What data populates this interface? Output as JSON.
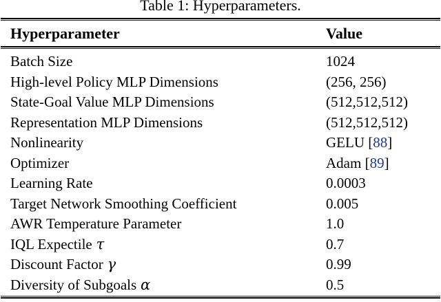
{
  "caption": "Table 1: Hyperparameters.",
  "colors": {
    "text": "#000000",
    "background": "#ffffff",
    "citation": "#1b3a8f"
  },
  "table": {
    "headers": [
      "Hyperparameter",
      "Value"
    ],
    "cite_open": "[",
    "cite_close": "]",
    "rows": [
      {
        "param": "Batch Size",
        "value": "1024"
      },
      {
        "param": "High-level Policy MLP Dimensions",
        "value": "(256, 256)"
      },
      {
        "param": "State-Goal Value MLP Dimensions",
        "value": "(512,512,512)"
      },
      {
        "param": "Representation MLP Dimensions",
        "value": "(512,512,512)"
      },
      {
        "param": "Nonlinearity",
        "value": "GELU",
        "cite": "88"
      },
      {
        "param": "Optimizer",
        "value": "Adam",
        "cite": "89"
      },
      {
        "param": "Learning Rate",
        "value": "0.0003"
      },
      {
        "param": "Target Network Smoothing Coefficient",
        "value": "0.005"
      },
      {
        "param": "AWR Temperature Parameter",
        "value": "1.0"
      },
      {
        "param": "IQL Expectile",
        "symbol": "τ",
        "value": "0.7"
      },
      {
        "param": "Discount Factor",
        "symbol": "γ",
        "value": "0.99"
      },
      {
        "param": "Diversity of Subgoals",
        "symbol": "α",
        "value": "0.5"
      }
    ]
  }
}
